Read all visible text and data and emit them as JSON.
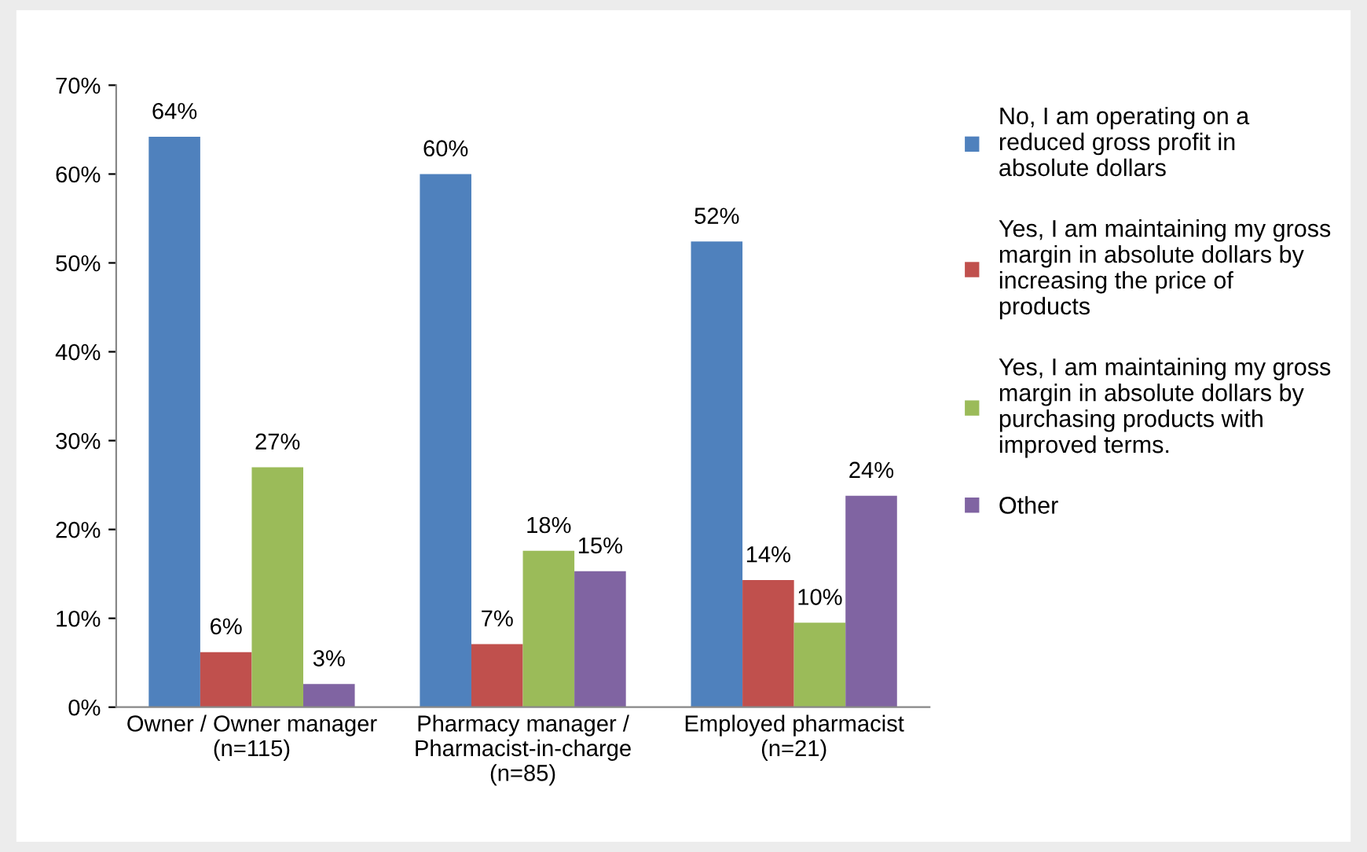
{
  "chart_data": {
    "type": "bar",
    "categories": [
      "Owner / Owner manager\n(n=115)",
      "Pharmacy manager /\nPharmacist-in-charge\n(n=85)",
      "Employed pharmacist\n(n=21)"
    ],
    "series": [
      {
        "name": "No, I am operating on a reduced gross profit in absolute dollars",
        "color": "#4f81bd",
        "values": [
          0.642,
          0.6,
          0.524
        ],
        "value_labels": [
          "64%",
          "60%",
          "52%"
        ]
      },
      {
        "name": "Yes, I am maintaining my gross margin in absolute dollars by increasing the price of products",
        "color": "#c0504d",
        "values": [
          0.062,
          0.071,
          0.143
        ],
        "value_labels": [
          "6%",
          "7%",
          "14%"
        ]
      },
      {
        "name": "Yes, I am maintaining my gross margin in absolute dollars by purchasing products with improved terms.",
        "color": "#9bbb59",
        "values": [
          0.27,
          0.176,
          0.095
        ],
        "value_labels": [
          "27%",
          "18%",
          "10%"
        ]
      },
      {
        "name": "Other",
        "color": "#8064a2",
        "values": [
          0.026,
          0.153,
          0.238
        ],
        "value_labels": [
          "3%",
          "15%",
          "24%"
        ]
      }
    ],
    "ylim": [
      0,
      0.7
    ],
    "yticks": [
      {
        "value": 0,
        "label": "0%"
      },
      {
        "value": 0.1,
        "label": "10%"
      },
      {
        "value": 0.2,
        "label": "20%"
      },
      {
        "value": 0.3,
        "label": "30%"
      },
      {
        "value": 0.4,
        "label": "40%"
      },
      {
        "value": 0.5,
        "label": "50%"
      },
      {
        "value": 0.6,
        "label": "60%"
      },
      {
        "value": 0.7,
        "label": "70%"
      }
    ],
    "grid": false,
    "legend": "right"
  }
}
